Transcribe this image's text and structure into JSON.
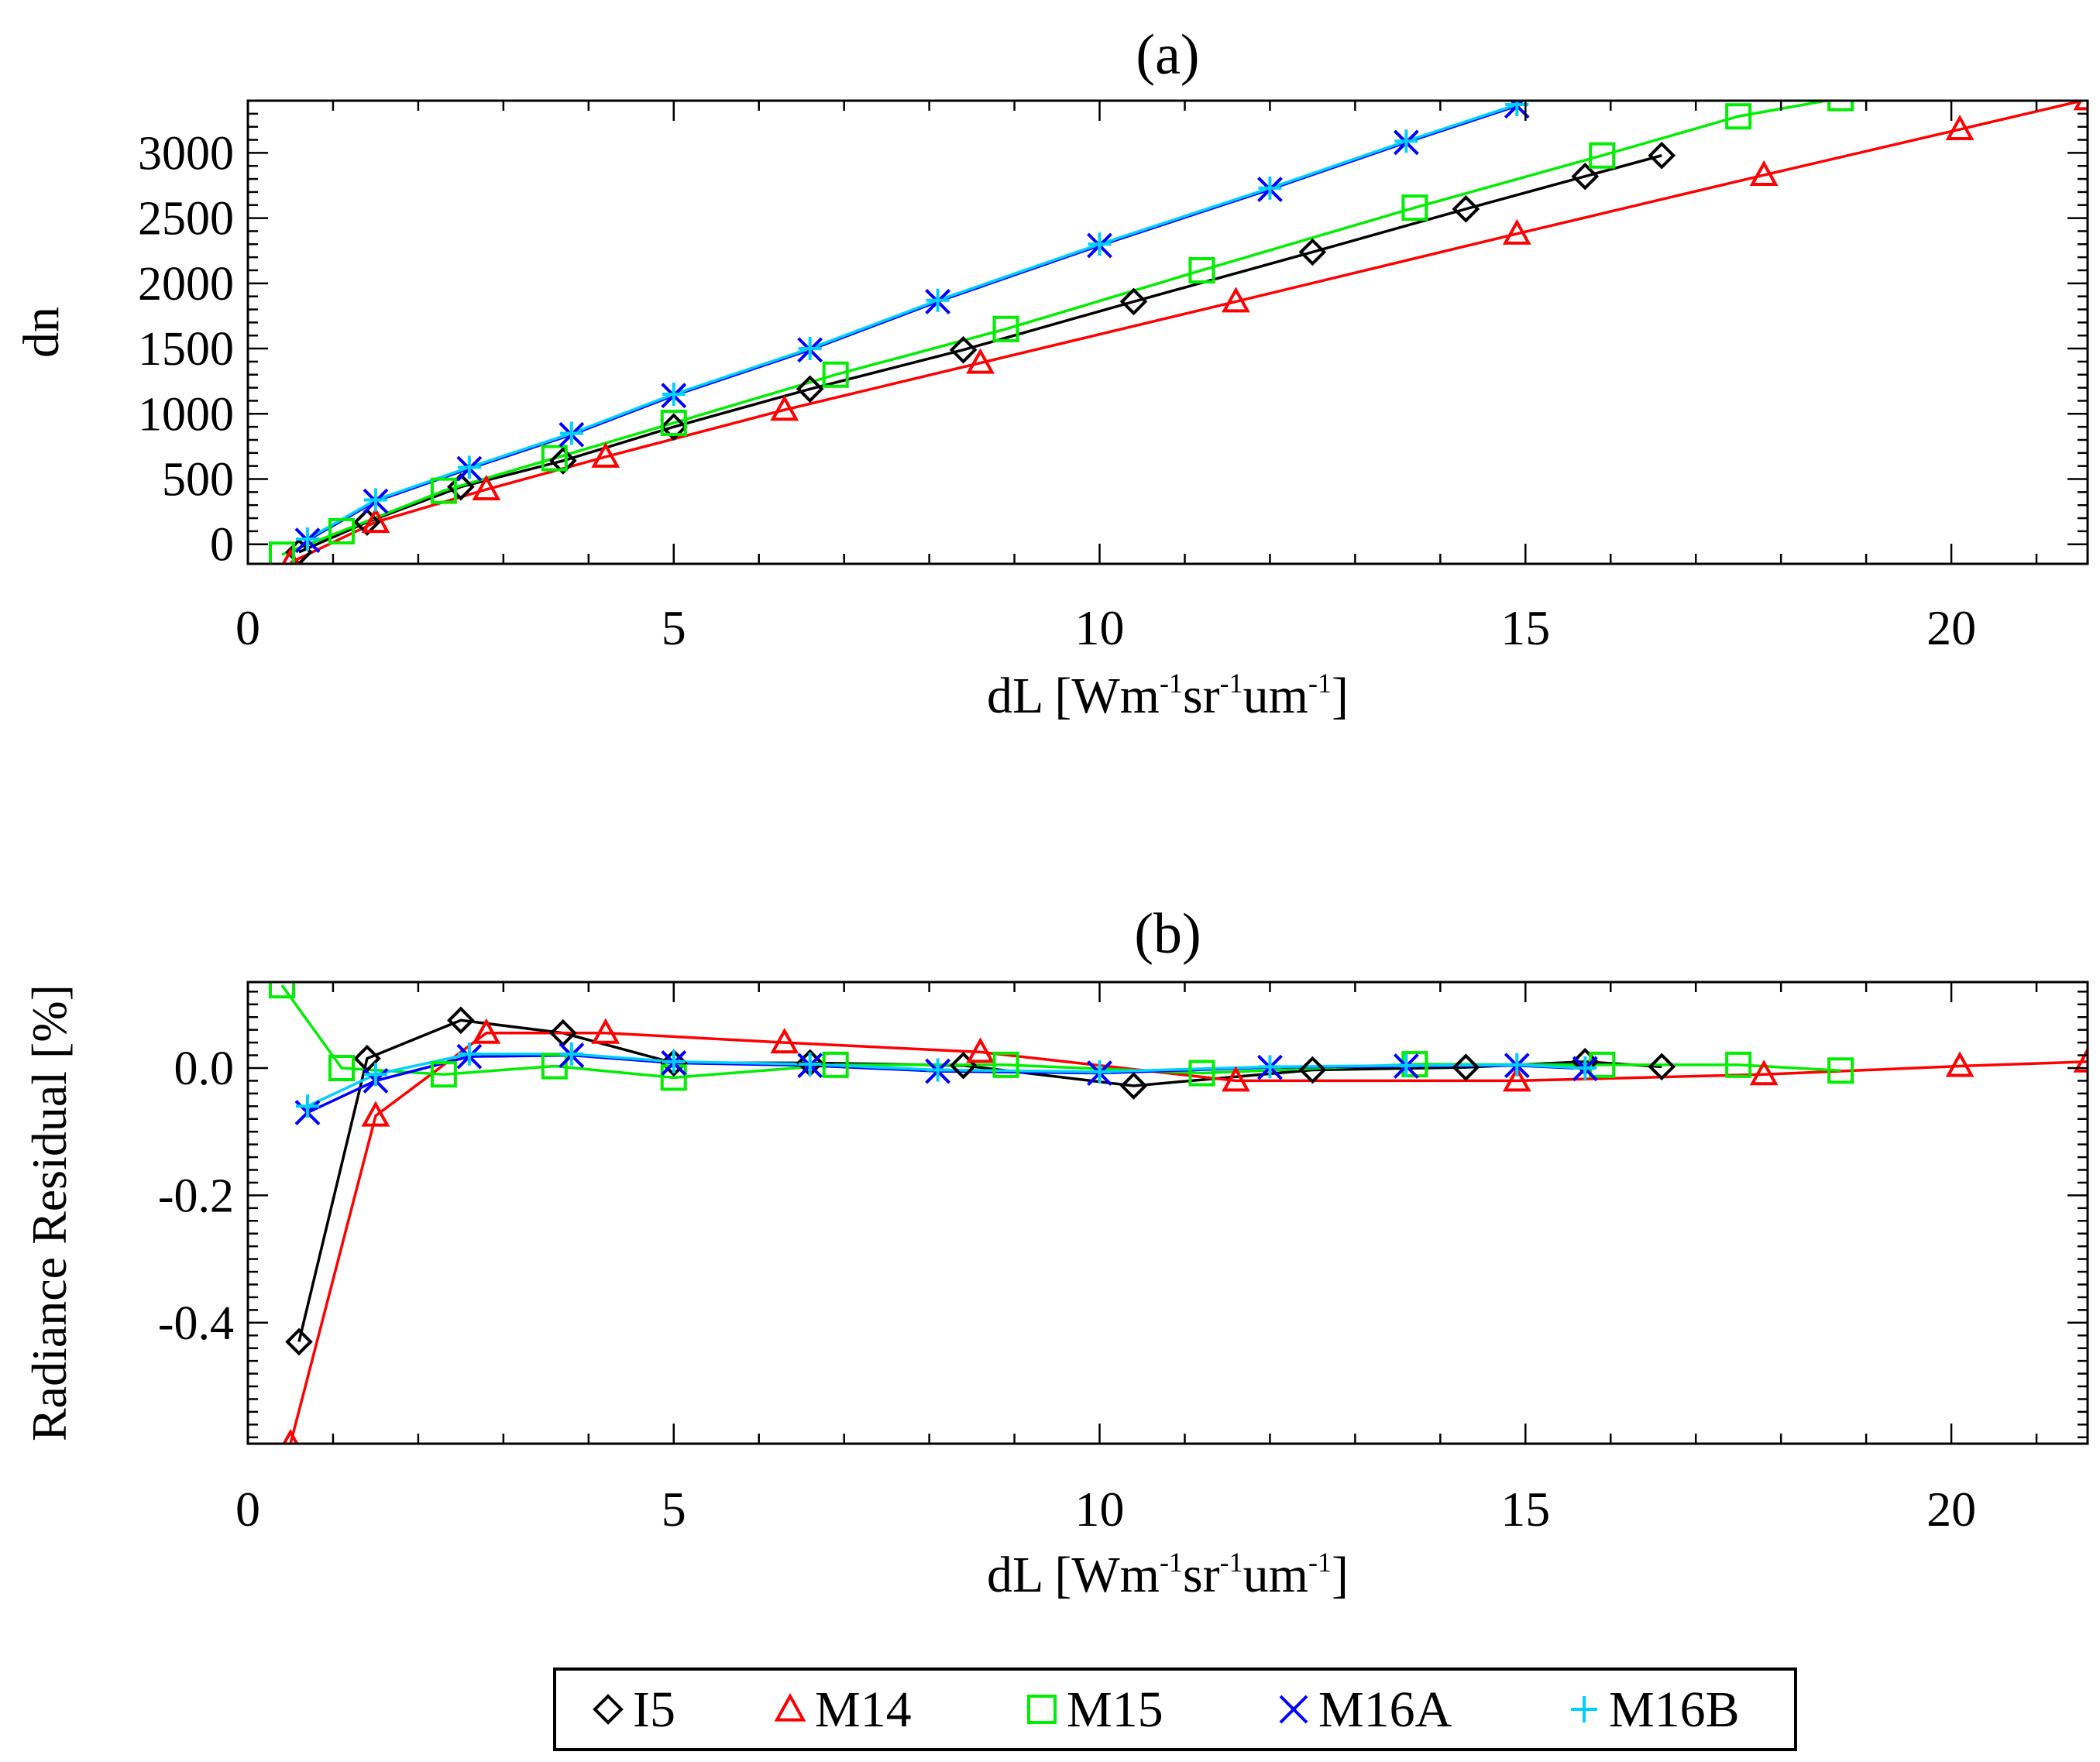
{
  "chart_data": [
    {
      "id": "a",
      "type": "line",
      "title": "(a)",
      "xlabel_base": "dL [Wm",
      "xlabel_sup1": "-1",
      "xlabel_mid": "sr",
      "xlabel_sup2": "-1",
      "xlabel_mid2": "um",
      "xlabel_sup3": "-1",
      "xlabel_end": "]",
      "ylabel": "dn",
      "xlim": [
        0,
        21.6
      ],
      "ylim": [
        -150,
        3400
      ],
      "xticks": [
        0,
        5,
        10,
        15,
        20
      ],
      "xtick_labels": [
        "0",
        "5",
        "10",
        "15",
        "20"
      ],
      "yticks": [
        0,
        500,
        1000,
        1500,
        2000,
        2500,
        3000
      ],
      "ytick_labels": [
        "0",
        "500",
        "1000",
        "1500",
        "2000",
        "2500",
        "3000"
      ],
      "series": [
        {
          "name": "I5",
          "marker": "diamond",
          "color": "#000000",
          "x": [
            0.6,
            1.4,
            2.5,
            3.7,
            5.0,
            6.6,
            8.4,
            10.4,
            12.5,
            14.3,
            15.7,
            16.6
          ],
          "y": [
            -60,
            170,
            440,
            640,
            900,
            1190,
            1490,
            1860,
            2240,
            2570,
            2820,
            2980
          ]
        },
        {
          "name": "M14",
          "marker": "triangle",
          "color": "#ff0000",
          "x": [
            0.5,
            1.5,
            2.8,
            4.2,
            6.3,
            8.6,
            11.6,
            14.9,
            17.8,
            20.1,
            21.6
          ],
          "y": [
            -140,
            170,
            420,
            670,
            1030,
            1390,
            1860,
            2380,
            2830,
            3180,
            3410
          ]
        },
        {
          "name": "M15",
          "marker": "square",
          "color": "#00ee00",
          "x": [
            0.4,
            1.1,
            2.3,
            3.6,
            5.0,
            6.9,
            8.9,
            11.2,
            13.7,
            15.9,
            17.5,
            18.7
          ],
          "y": [
            -80,
            100,
            410,
            660,
            930,
            1300,
            1650,
            2100,
            2580,
            2980,
            3280,
            3420
          ]
        },
        {
          "name": "M16A",
          "marker": "x",
          "color": "#0000ff",
          "x": [
            0.7,
            1.5,
            2.6,
            3.8,
            5.0,
            6.6,
            8.1,
            10.0,
            12.0,
            13.6,
            14.9
          ],
          "y": [
            30,
            330,
            580,
            840,
            1140,
            1490,
            1860,
            2290,
            2720,
            3080,
            3360
          ]
        },
        {
          "name": "M16B",
          "marker": "plus",
          "color": "#00d0ff",
          "x": [
            0.7,
            1.5,
            2.6,
            3.8,
            5.0,
            6.6,
            8.1,
            10.0,
            12.0,
            13.6,
            14.9
          ],
          "y": [
            40,
            340,
            590,
            850,
            1150,
            1500,
            1870,
            2300,
            2730,
            3090,
            3370
          ]
        }
      ]
    },
    {
      "id": "b",
      "type": "line",
      "title": "(b)",
      "xlabel_base": "dL [Wm",
      "xlabel_sup1": "-1",
      "xlabel_mid": "sr",
      "xlabel_sup2": "-1",
      "xlabel_mid2": "um",
      "xlabel_sup3": "-1",
      "xlabel_end": "]",
      "ylabel": "Radiance Residual [%]",
      "xlim": [
        0,
        21.6
      ],
      "ylim": [
        -0.59,
        0.135
      ],
      "xticks": [
        0,
        5,
        10,
        15,
        20
      ],
      "xtick_labels": [
        "0",
        "5",
        "10",
        "15",
        "20"
      ],
      "yticks": [
        -0.4,
        -0.2,
        0.0
      ],
      "ytick_labels": [
        "-0.4",
        "-0.2",
        "0.0"
      ],
      "series": [
        {
          "name": "I5",
          "marker": "diamond",
          "color": "#000000",
          "x": [
            0.6,
            1.4,
            2.5,
            3.7,
            5.0,
            6.6,
            8.4,
            10.4,
            12.5,
            14.3,
            15.7,
            16.6
          ],
          "y": [
            -0.43,
            0.015,
            0.075,
            0.055,
            0.008,
            0.008,
            0.004,
            -0.028,
            -0.003,
            0.001,
            0.01,
            0.002
          ]
        },
        {
          "name": "M14",
          "marker": "triangle",
          "color": "#ff0000",
          "x": [
            0.5,
            1.5,
            2.8,
            4.2,
            6.3,
            8.6,
            11.6,
            14.9,
            17.8,
            20.1,
            21.6
          ],
          "y": [
            -0.59,
            -0.075,
            0.055,
            0.055,
            0.04,
            0.025,
            -0.02,
            -0.02,
            -0.01,
            0.003,
            0.01
          ]
        },
        {
          "name": "M15",
          "marker": "square",
          "color": "#00ee00",
          "x": [
            0.4,
            1.1,
            2.3,
            3.6,
            5.0,
            6.9,
            8.9,
            11.2,
            13.7,
            15.9,
            17.5,
            18.7
          ],
          "y": [
            0.13,
            0.0,
            -0.01,
            0.003,
            -0.015,
            0.005,
            0.005,
            -0.008,
            0.006,
            0.005,
            0.005,
            -0.004
          ]
        },
        {
          "name": "M16A",
          "marker": "x",
          "color": "#0000ff",
          "x": [
            0.7,
            1.5,
            2.6,
            3.8,
            5.0,
            6.6,
            8.1,
            10.0,
            12.0,
            13.6,
            14.9,
            15.7
          ],
          "y": [
            -0.07,
            -0.02,
            0.018,
            0.02,
            0.008,
            0.004,
            -0.005,
            -0.008,
            0.001,
            0.003,
            0.004,
            -0.001
          ]
        },
        {
          "name": "M16B",
          "marker": "plus",
          "color": "#00d0ff",
          "x": [
            0.7,
            1.5,
            2.6,
            3.8,
            5.0,
            6.6,
            8.1,
            10.0,
            12.0,
            13.6,
            14.9,
            15.7
          ],
          "y": [
            -0.06,
            -0.01,
            0.022,
            0.022,
            0.01,
            0.006,
            -0.003,
            -0.006,
            0.002,
            0.004,
            0.005,
            0.0
          ]
        }
      ]
    }
  ],
  "legend": {
    "placement": "bottom-center",
    "items": [
      {
        "label": "I5",
        "marker": "diamond",
        "color": "#000000"
      },
      {
        "label": "M14",
        "marker": "triangle",
        "color": "#ff0000"
      },
      {
        "label": "M15",
        "marker": "square",
        "color": "#00ee00"
      },
      {
        "label": "M16A",
        "marker": "x",
        "color": "#0000ff"
      },
      {
        "label": "M16B",
        "marker": "plus",
        "color": "#00d0ff"
      }
    ]
  }
}
